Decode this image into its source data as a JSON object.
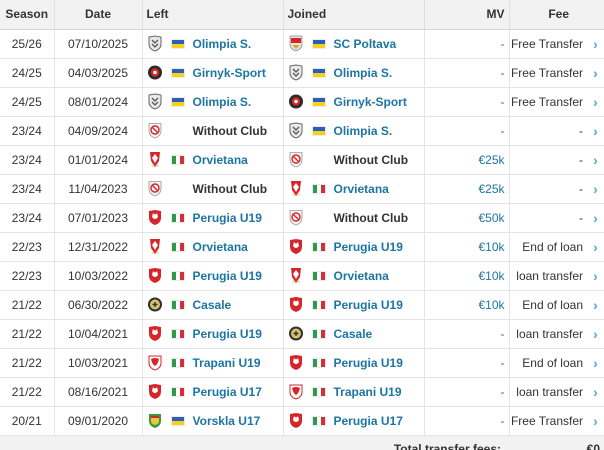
{
  "headers": {
    "season": "Season",
    "date": "Date",
    "left": "Left",
    "joined": "Joined",
    "mv": "MV",
    "fee": "Fee"
  },
  "rows": [
    {
      "season": "25/26",
      "date": "07/10/2025",
      "left": {
        "name": "Olimpia S.",
        "crest": "olimpia-crest",
        "flag": "ua"
      },
      "joined": {
        "name": "SC Poltava",
        "crest": "poltava-crest",
        "flag": "ua"
      },
      "mv": "-",
      "fee": "Free Transfer"
    },
    {
      "season": "24/25",
      "date": "04/03/2025",
      "left": {
        "name": "Girnyk-Sport",
        "crest": "girnyk-crest",
        "flag": "ua"
      },
      "joined": {
        "name": "Olimpia S.",
        "crest": "olimpia-crest",
        "flag": "ua"
      },
      "mv": "-",
      "fee": "Free Transfer"
    },
    {
      "season": "24/25",
      "date": "08/01/2024",
      "left": {
        "name": "Olimpia S.",
        "crest": "olimpia-crest",
        "flag": "ua"
      },
      "joined": {
        "name": "Girnyk-Sport",
        "crest": "girnyk-crest",
        "flag": "ua"
      },
      "mv": "-",
      "fee": "Free Transfer"
    },
    {
      "season": "23/24",
      "date": "04/09/2024",
      "left": {
        "name": "Without Club",
        "crest": "without-club-icon",
        "flag": ""
      },
      "joined": {
        "name": "Olimpia S.",
        "crest": "olimpia-crest",
        "flag": "ua"
      },
      "mv": "-",
      "fee": "-"
    },
    {
      "season": "23/24",
      "date": "01/01/2024",
      "left": {
        "name": "Orvietana",
        "crest": "orvietana-crest",
        "flag": "it"
      },
      "joined": {
        "name": "Without Club",
        "crest": "without-club-icon",
        "flag": ""
      },
      "mv": "€25k",
      "fee": "-"
    },
    {
      "season": "23/24",
      "date": "11/04/2023",
      "left": {
        "name": "Without Club",
        "crest": "without-club-icon",
        "flag": ""
      },
      "joined": {
        "name": "Orvietana",
        "crest": "orvietana-crest",
        "flag": "it"
      },
      "mv": "€25k",
      "fee": "-"
    },
    {
      "season": "23/24",
      "date": "07/01/2023",
      "left": {
        "name": "Perugia U19",
        "crest": "perugia-crest",
        "flag": "it"
      },
      "joined": {
        "name": "Without Club",
        "crest": "without-club-icon",
        "flag": ""
      },
      "mv": "€50k",
      "fee": "-"
    },
    {
      "season": "22/23",
      "date": "12/31/2022",
      "left": {
        "name": "Orvietana",
        "crest": "orvietana-crest",
        "flag": "it"
      },
      "joined": {
        "name": "Perugia U19",
        "crest": "perugia-crest",
        "flag": "it"
      },
      "mv": "€10k",
      "fee": "End of loan"
    },
    {
      "season": "22/23",
      "date": "10/03/2022",
      "left": {
        "name": "Perugia U19",
        "crest": "perugia-crest",
        "flag": "it"
      },
      "joined": {
        "name": "Orvietana",
        "crest": "orvietana-crest",
        "flag": "it"
      },
      "mv": "€10k",
      "fee": "loan transfer"
    },
    {
      "season": "21/22",
      "date": "06/30/2022",
      "left": {
        "name": "Casale",
        "crest": "casale-crest",
        "flag": "it"
      },
      "joined": {
        "name": "Perugia U19",
        "crest": "perugia-crest",
        "flag": "it"
      },
      "mv": "€10k",
      "fee": "End of loan"
    },
    {
      "season": "21/22",
      "date": "10/04/2021",
      "left": {
        "name": "Perugia U19",
        "crest": "perugia-crest",
        "flag": "it"
      },
      "joined": {
        "name": "Casale",
        "crest": "casale-crest",
        "flag": "it"
      },
      "mv": "-",
      "fee": "loan transfer"
    },
    {
      "season": "21/22",
      "date": "10/03/2021",
      "left": {
        "name": "Trapani U19",
        "crest": "trapani-crest",
        "flag": "it"
      },
      "joined": {
        "name": "Perugia U19",
        "crest": "perugia-crest",
        "flag": "it"
      },
      "mv": "-",
      "fee": "End of loan"
    },
    {
      "season": "21/22",
      "date": "08/16/2021",
      "left": {
        "name": "Perugia U17",
        "crest": "perugia-crest",
        "flag": "it"
      },
      "joined": {
        "name": "Trapani U19",
        "crest": "trapani-crest",
        "flag": "it"
      },
      "mv": "-",
      "fee": "loan transfer"
    },
    {
      "season": "20/21",
      "date": "09/01/2020",
      "left": {
        "name": "Vorskla U17",
        "crest": "vorskla-crest",
        "flag": "ua"
      },
      "joined": {
        "name": "Perugia U17",
        "crest": "perugia-crest",
        "flag": "it"
      },
      "mv": "-",
      "fee": "Free Transfer"
    }
  ],
  "footer": {
    "label": "Total transfer fees:",
    "total": "€0"
  },
  "colors": {
    "link": "#1d75a3",
    "chevron": "#5aa6d6",
    "header_bg": "#f2f2f2",
    "ua_blue": "#2e5cb8",
    "ua_yellow": "#f2d21a",
    "it_green": "#2e9a4a",
    "it_red": "#d22f3a",
    "perugia_red": "#d7262b",
    "girnyk_dark": "#2a2a2a",
    "vorskla_green": "#3b9b3b",
    "casale_dark": "#2f2f2f"
  }
}
